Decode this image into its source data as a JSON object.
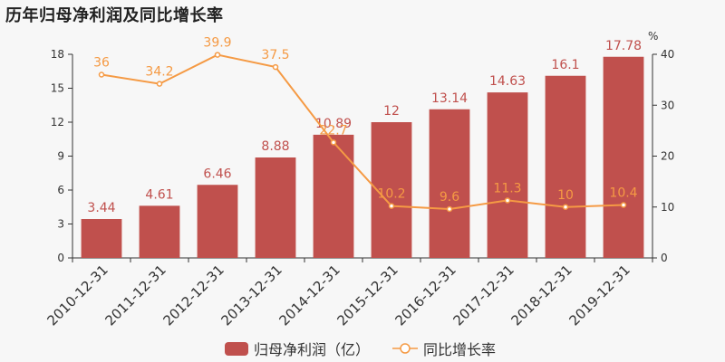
{
  "title": "历年归母净利润及同比增长率",
  "colors": {
    "bar": "#c0504d",
    "line": "#f59a44",
    "bar_label": "#c0504d",
    "line_label": "#f59a44"
  },
  "chart_data": {
    "type": "bar",
    "title": "历年归母净利润及同比增长率",
    "categories": [
      "2010-12-31",
      "2011-12-31",
      "2012-12-31",
      "2013-12-31",
      "2014-12-31",
      "2015-12-31",
      "2016-12-31",
      "2017-12-31",
      "2018-12-31",
      "2019-12-31"
    ],
    "series": [
      {
        "name": "归母净利润（亿）",
        "type": "bar",
        "axis": "left",
        "values": [
          3.44,
          4.61,
          6.46,
          8.88,
          10.89,
          12,
          13.14,
          14.63,
          16.1,
          17.78
        ]
      },
      {
        "name": "同比增长率",
        "type": "line",
        "axis": "right",
        "values": [
          36,
          34.2,
          39.9,
          37.5,
          22.7,
          10.2,
          9.6,
          11.3,
          10,
          10.4
        ]
      }
    ],
    "y_left": {
      "min": 0,
      "max": 18,
      "ticks": [
        0,
        3,
        6,
        9,
        12,
        15,
        18
      ]
    },
    "y_right": {
      "min": 0,
      "max": 40,
      "ticks": [
        0,
        10,
        20,
        30,
        40
      ],
      "unit": "%"
    },
    "grid": false,
    "legend": "bottom-center"
  }
}
